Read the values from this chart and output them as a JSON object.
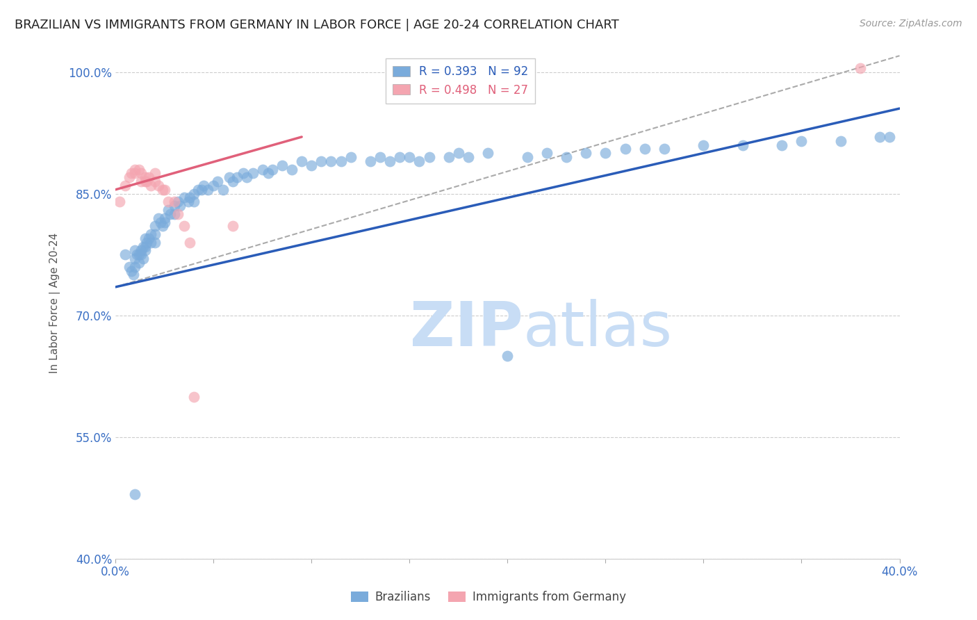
{
  "title": "BRAZILIAN VS IMMIGRANTS FROM GERMANY IN LABOR FORCE | AGE 20-24 CORRELATION CHART",
  "source": "Source: ZipAtlas.com",
  "ylabel": "In Labor Force | Age 20-24",
  "xlim": [
    0.0,
    0.4
  ],
  "ylim": [
    0.4,
    1.03
  ],
  "yticks": [
    0.4,
    0.55,
    0.7,
    0.85,
    1.0
  ],
  "ytick_labels": [
    "40.0%",
    "55.0%",
    "70.0%",
    "85.0%",
    "100.0%"
  ],
  "xticks": [
    0.0,
    0.05,
    0.1,
    0.15,
    0.2,
    0.25,
    0.3,
    0.35,
    0.4
  ],
  "xtick_labels": [
    "0.0%",
    "",
    "",
    "",
    "",
    "",
    "",
    "",
    "40.0%"
  ],
  "blue_R": 0.393,
  "blue_N": 92,
  "pink_R": 0.498,
  "pink_N": 27,
  "blue_color": "#7aabdb",
  "pink_color": "#f4a5b0",
  "blue_line_color": "#2a5cb8",
  "pink_line_color": "#e0607a",
  "gray_dash_color": "#aaaaaa",
  "legend_label_blue": "Brazilians",
  "legend_label_pink": "Immigrants from Germany",
  "blue_points_x": [
    0.005,
    0.007,
    0.008,
    0.009,
    0.01,
    0.01,
    0.01,
    0.011,
    0.012,
    0.012,
    0.013,
    0.013,
    0.014,
    0.014,
    0.015,
    0.015,
    0.015,
    0.016,
    0.017,
    0.018,
    0.018,
    0.02,
    0.02,
    0.02,
    0.022,
    0.023,
    0.024,
    0.025,
    0.025,
    0.027,
    0.028,
    0.03,
    0.03,
    0.032,
    0.033,
    0.035,
    0.037,
    0.038,
    0.04,
    0.04,
    0.042,
    0.044,
    0.045,
    0.047,
    0.05,
    0.052,
    0.055,
    0.058,
    0.06,
    0.062,
    0.065,
    0.067,
    0.07,
    0.075,
    0.078,
    0.08,
    0.085,
    0.09,
    0.095,
    0.1,
    0.105,
    0.11,
    0.115,
    0.12,
    0.13,
    0.135,
    0.14,
    0.145,
    0.15,
    0.155,
    0.16,
    0.17,
    0.175,
    0.18,
    0.19,
    0.2,
    0.21,
    0.22,
    0.23,
    0.24,
    0.25,
    0.26,
    0.27,
    0.28,
    0.3,
    0.32,
    0.34,
    0.35,
    0.37,
    0.39,
    0.395,
    0.01
  ],
  "blue_points_y": [
    0.775,
    0.76,
    0.755,
    0.75,
    0.78,
    0.77,
    0.76,
    0.775,
    0.775,
    0.765,
    0.78,
    0.775,
    0.785,
    0.77,
    0.795,
    0.785,
    0.78,
    0.79,
    0.795,
    0.8,
    0.79,
    0.81,
    0.8,
    0.79,
    0.82,
    0.815,
    0.81,
    0.82,
    0.815,
    0.83,
    0.825,
    0.835,
    0.825,
    0.84,
    0.835,
    0.845,
    0.84,
    0.845,
    0.85,
    0.84,
    0.855,
    0.855,
    0.86,
    0.855,
    0.86,
    0.865,
    0.855,
    0.87,
    0.865,
    0.87,
    0.875,
    0.87,
    0.875,
    0.88,
    0.875,
    0.88,
    0.885,
    0.88,
    0.89,
    0.885,
    0.89,
    0.89,
    0.89,
    0.895,
    0.89,
    0.895,
    0.89,
    0.895,
    0.895,
    0.89,
    0.895,
    0.895,
    0.9,
    0.895,
    0.9,
    0.65,
    0.895,
    0.9,
    0.895,
    0.9,
    0.9,
    0.905,
    0.905,
    0.905,
    0.91,
    0.91,
    0.91,
    0.915,
    0.915,
    0.92,
    0.92,
    0.48
  ],
  "pink_points_x": [
    0.002,
    0.005,
    0.007,
    0.008,
    0.01,
    0.01,
    0.012,
    0.013,
    0.013,
    0.015,
    0.015,
    0.016,
    0.017,
    0.018,
    0.02,
    0.02,
    0.022,
    0.024,
    0.025,
    0.027,
    0.03,
    0.032,
    0.035,
    0.038,
    0.04,
    0.06,
    0.38
  ],
  "pink_points_y": [
    0.84,
    0.86,
    0.87,
    0.875,
    0.88,
    0.875,
    0.88,
    0.875,
    0.865,
    0.87,
    0.865,
    0.865,
    0.87,
    0.86,
    0.875,
    0.865,
    0.86,
    0.855,
    0.855,
    0.84,
    0.84,
    0.825,
    0.81,
    0.79,
    0.6,
    0.81,
    1.005
  ],
  "blue_trend_x": [
    0.0,
    0.4
  ],
  "blue_trend_y": [
    0.735,
    0.955
  ],
  "pink_trend_x": [
    0.0,
    0.095
  ],
  "pink_trend_y": [
    0.855,
    0.92
  ],
  "gray_trend_x": [
    0.0,
    0.4
  ],
  "gray_trend_y": [
    0.735,
    1.02
  ],
  "watermark_line1": "ZIP",
  "watermark_line2": "atlas",
  "watermark_color": "#c8ddf5",
  "background_color": "#ffffff",
  "title_fontsize": 13,
  "axis_color": "#3a6fc4",
  "source_color": "#999999"
}
